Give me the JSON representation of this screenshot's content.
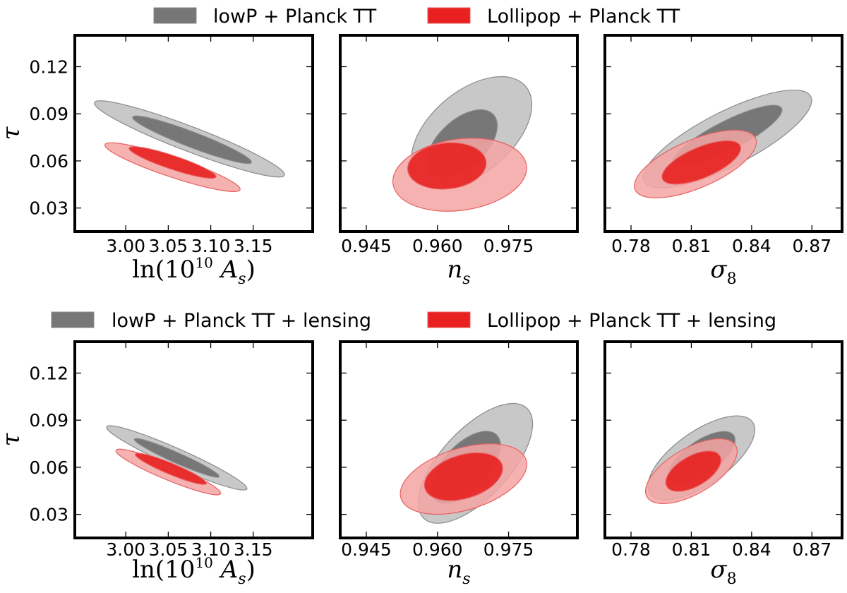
{
  "chart_data": [
    {
      "type": "contour",
      "legend": [
        {
          "label": "lowP + Planck TT",
          "color": "#777777"
        },
        {
          "label": "Lollipop + Planck TT",
          "color": "#ee2222"
        }
      ],
      "ylabel": "τ",
      "ylim": [
        0.015,
        0.14
      ],
      "yticks": [
        0.03,
        0.06,
        0.09,
        0.12
      ],
      "ytick_labels": [
        "0.03",
        "0.06",
        "0.09",
        "0.12"
      ],
      "panels": [
        {
          "xlabel_parts": {
            "pre": "ln(10",
            "sup": "10",
            "mid": " A",
            "sub": "s",
            "post": ")"
          },
          "xlim": [
            2.94,
            3.22
          ],
          "xticks": [
            3.0,
            3.05,
            3.1,
            3.15
          ],
          "xtick_labels": [
            "3.00",
            "3.05",
            "3.10",
            "3.15"
          ],
          "ellipses": [
            {
              "series": "lowP + Planck TT",
              "level": "95%",
              "cx": 3.075,
              "cy": 0.074,
              "rx": 0.1197,
              "ry": 0.0079,
              "angle": 20.9
            },
            {
              "series": "lowP + Planck TT",
              "level": "68%",
              "cx": 3.078,
              "cy": 0.0735,
              "rx": 0.0748,
              "ry": 0.0049,
              "angle": 20.9
            },
            {
              "series": "Lollipop + Planck TT",
              "level": "95%",
              "cx": 3.055,
              "cy": 0.056,
              "rx": 0.0838,
              "ry": 0.0063,
              "angle": 18.4
            },
            {
              "series": "Lollipop + Planck TT",
              "level": "68%",
              "cx": 3.055,
              "cy": 0.059,
              "rx": 0.0538,
              "ry": 0.0043,
              "angle": 18.4
            }
          ]
        },
        {
          "xlabel_parts": {
            "pre": "",
            "sup": "",
            "mid": "n",
            "sub": "s",
            "post": ""
          },
          "xlim": [
            0.9395,
            0.9895
          ],
          "xticks": [
            0.945,
            0.96,
            0.975
          ],
          "xtick_labels": [
            "0.945",
            "0.960",
            "0.975"
          ],
          "ellipses": [
            {
              "series": "lowP + Planck TT",
              "level": "95%",
              "cx": 0.9672,
              "cy": 0.0785,
              "rx": 0.0149,
              "ry": 0.0261,
              "angle": -40
            },
            {
              "series": "lowP + Planck TT",
              "level": "68%",
              "cx": 0.9652,
              "cy": 0.071,
              "rx": 0.009,
              "ry": 0.0151,
              "angle": -43
            },
            {
              "series": "Lollipop + Planck TT",
              "level": "95%",
              "cx": 0.9647,
              "cy": 0.0512,
              "rx": 0.0142,
              "ry": 0.0227,
              "angle": -8
            },
            {
              "series": "Lollipop + Planck TT",
              "level": "68%",
              "cx": 0.962,
              "cy": 0.0568,
              "rx": 0.0083,
              "ry": 0.0146,
              "angle": -6
            }
          ]
        },
        {
          "xlabel_parts": {
            "pre": "",
            "sup": "",
            "mid": "σ",
            "sub": "8",
            "post": ""
          },
          "xlim": [
            0.767,
            0.885
          ],
          "xticks": [
            0.78,
            0.81,
            0.84,
            0.87
          ],
          "xtick_labels": [
            "0.78",
            "0.81",
            "0.84",
            "0.87"
          ],
          "ellipses": [
            {
              "series": "lowP + Planck TT",
              "level": "95%",
              "cx": 0.828,
              "cy": 0.074,
              "rx": 0.0465,
              "ry": 0.0173,
              "angle": -27
            },
            {
              "series": "lowP + Planck TT",
              "level": "68%",
              "cx": 0.828,
              "cy": 0.076,
              "rx": 0.0302,
              "ry": 0.0093,
              "angle": -27
            },
            {
              "series": "Lollipop + Planck TT",
              "level": "95%",
              "cx": 0.812,
              "cy": 0.058,
              "rx": 0.0326,
              "ry": 0.0153,
              "angle": -23
            },
            {
              "series": "Lollipop + Planck TT",
              "level": "68%",
              "cx": 0.815,
              "cy": 0.059,
              "rx": 0.021,
              "ry": 0.0097,
              "angle": -23
            }
          ]
        }
      ]
    },
    {
      "type": "contour",
      "legend": [
        {
          "label": "lowP + Planck TT + lensing",
          "color": "#777777"
        },
        {
          "label": "Lollipop + Planck TT + lensing",
          "color": "#ee2222"
        }
      ],
      "ylabel": "τ",
      "ylim": [
        0.015,
        0.14
      ],
      "yticks": [
        0.03,
        0.06,
        0.09,
        0.12
      ],
      "ytick_labels": [
        "0.03",
        "0.06",
        "0.09",
        "0.12"
      ],
      "panels": [
        {
          "xlabel_parts": {
            "pre": "ln(10",
            "sup": "10",
            "mid": " A",
            "sub": "s",
            "post": ")"
          },
          "xlim": [
            2.94,
            3.22
          ],
          "xticks": [
            3.0,
            3.05,
            3.1,
            3.15
          ],
          "xtick_labels": [
            "3.00",
            "3.05",
            "3.10",
            "3.15"
          ],
          "ellipses": [
            {
              "series": "lowP + Planck TT + lensing",
              "level": "95%",
              "cx": 3.06,
              "cy": 0.066,
              "rx": 0.0903,
              "ry": 0.0058,
              "angle": 23.9
            },
            {
              "series": "lowP + Planck TT + lensing",
              "level": "68%",
              "cx": 3.06,
              "cy": 0.066,
              "rx": 0.0546,
              "ry": 0.0033,
              "angle": 23.9
            },
            {
              "series": "Lollipop + Planck TT + lensing",
              "level": "95%",
              "cx": 3.05,
              "cy": 0.057,
              "rx": 0.0666,
              "ry": 0.005,
              "angle": 22.5
            },
            {
              "series": "Lollipop + Planck TT + lensing",
              "level": "68%",
              "cx": 3.053,
              "cy": 0.059,
              "rx": 0.0452,
              "ry": 0.0035,
              "angle": 22.5
            }
          ]
        },
        {
          "xlabel_parts": {
            "pre": "",
            "sup": "",
            "mid": "n",
            "sub": "s",
            "post": ""
          },
          "xlim": [
            0.9395,
            0.9895
          ],
          "xticks": [
            0.945,
            0.96,
            0.975
          ],
          "xtick_labels": [
            "0.945",
            "0.960",
            "0.975"
          ],
          "ellipses": [
            {
              "series": "lowP + Planck TT + lensing",
              "level": "95%",
              "cx": 0.968,
              "cy": 0.0625,
              "rx": 0.0159,
              "ry": 0.0218,
              "angle": -47
            },
            {
              "series": "lowP + Planck TT + lensing",
              "level": "68%",
              "cx": 0.966,
              "cy": 0.06,
              "rx": 0.0094,
              "ry": 0.0144,
              "angle": -47
            },
            {
              "series": "Lollipop + Planck TT + lensing",
              "level": "95%",
              "cx": 0.9655,
              "cy": 0.0525,
              "rx": 0.0138,
              "ry": 0.0197,
              "angle": -17
            },
            {
              "series": "Lollipop + Planck TT + lensing",
              "level": "68%",
              "cx": 0.9655,
              "cy": 0.054,
              "rx": 0.0085,
              "ry": 0.0138,
              "angle": -17
            }
          ]
        },
        {
          "xlabel_parts": {
            "pre": "",
            "sup": "",
            "mid": "σ",
            "sub": "8",
            "post": ""
          },
          "xlim": [
            0.767,
            0.885
          ],
          "xticks": [
            0.78,
            0.81,
            0.84,
            0.87
          ],
          "xtick_labels": [
            "0.78",
            "0.81",
            "0.84",
            "0.87"
          ],
          "ellipses": [
            {
              "series": "lowP + Planck TT + lensing",
              "level": "95%",
              "cx": 0.815,
              "cy": 0.066,
              "rx": 0.0311,
              "ry": 0.017,
              "angle": -35
            },
            {
              "series": "lowP + Planck TT + lensing",
              "level": "68%",
              "cx": 0.815,
              "cy": 0.066,
              "rx": 0.0196,
              "ry": 0.0106,
              "angle": -35
            },
            {
              "series": "Lollipop + Planck TT + lensing",
              "level": "95%",
              "cx": 0.81,
              "cy": 0.0575,
              "rx": 0.0255,
              "ry": 0.0146,
              "angle": -30
            },
            {
              "series": "Lollipop + Planck TT + lensing",
              "level": "68%",
              "cx": 0.811,
              "cy": 0.0575,
              "rx": 0.0152,
              "ry": 0.0096,
              "angle": -30
            }
          ]
        }
      ]
    }
  ],
  "style": {
    "gray_fill_95": "#c8c8c8",
    "gray_fill_68": "#777777",
    "gray_edge": "#8a8a8a",
    "red_fill_95": "#f4a3a3",
    "red_fill_68": "#e82020",
    "red_edge": "#e86060",
    "axis_color": "#000000"
  }
}
